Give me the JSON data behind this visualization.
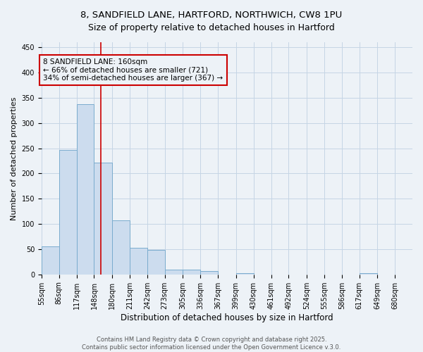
{
  "title_line1": "8, SANDFIELD LANE, HARTFORD, NORTHWICH, CW8 1PU",
  "title_line2": "Size of property relative to detached houses in Hartford",
  "xlabel": "Distribution of detached houses by size in Hartford",
  "ylabel": "Number of detached properties",
  "bin_labels": [
    "55sqm",
    "86sqm",
    "117sqm",
    "148sqm",
    "180sqm",
    "211sqm",
    "242sqm",
    "273sqm",
    "305sqm",
    "336sqm",
    "367sqm",
    "399sqm",
    "430sqm",
    "461sqm",
    "492sqm",
    "524sqm",
    "555sqm",
    "586sqm",
    "617sqm",
    "649sqm",
    "680sqm"
  ],
  "bin_edges": [
    55,
    86,
    117,
    148,
    180,
    211,
    242,
    273,
    305,
    336,
    367,
    399,
    430,
    461,
    492,
    524,
    555,
    586,
    617,
    649,
    680
  ],
  "bar_heights": [
    55,
    247,
    337,
    222,
    107,
    52,
    48,
    10,
    10,
    7,
    0,
    3,
    0,
    0,
    0,
    0,
    0,
    0,
    3,
    0
  ],
  "bar_facecolor": "#ccdcee",
  "bar_edgecolor": "#7aacce",
  "grid_color": "#c5d5e5",
  "vline_x": 160,
  "vline_color": "#cc0000",
  "annotation_text": "8 SANDFIELD LANE: 160sqm\n← 66% of detached houses are smaller (721)\n34% of semi-detached houses are larger (367) →",
  "annotation_box_edgecolor": "#cc0000",
  "ylim": [
    0,
    460
  ],
  "yticks": [
    0,
    50,
    100,
    150,
    200,
    250,
    300,
    350,
    400,
    450
  ],
  "footer_line1": "Contains HM Land Registry data © Crown copyright and database right 2025.",
  "footer_line2": "Contains public sector information licensed under the Open Government Licence v.3.0.",
  "bg_color": "#edf2f7",
  "title_fontsize": 9.5,
  "xlabel_fontsize": 8.5,
  "ylabel_fontsize": 8,
  "tick_fontsize": 7,
  "annotation_fontsize": 7.5,
  "footer_fontsize": 6
}
